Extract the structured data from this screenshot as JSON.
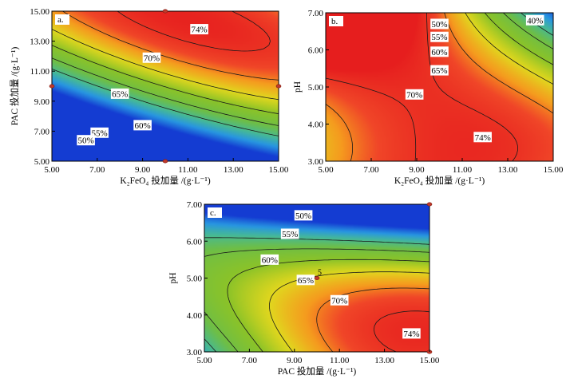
{
  "chart_data": [
    {
      "type": "heatmap",
      "panel_label": "a.",
      "xlabel": "K₂FeO₄ 投加量 /(g·L⁻¹)",
      "ylabel": "PAC 投加量 /(g·L⁻¹)",
      "xlim": [
        5,
        15
      ],
      "ylim": [
        5,
        15
      ],
      "xticks": [
        "5.00",
        "7.00",
        "9.00",
        "11.00",
        "13.00",
        "15.00"
      ],
      "yticks": [
        "5.00",
        "7.00",
        "9.00",
        "11.00",
        "13.00",
        "15.00"
      ],
      "contour_labels": [
        {
          "text": "74%",
          "x": 11.5,
          "y": 13.8
        },
        {
          "text": "70%",
          "x": 9.4,
          "y": 11.9
        },
        {
          "text": "65%",
          "x": 8.0,
          "y": 9.5
        },
        {
          "text": "60%",
          "x": 9.0,
          "y": 7.4
        },
        {
          "text": "55%",
          "x": 7.1,
          "y": 6.9
        },
        {
          "text": "50%",
          "x": 6.5,
          "y": 6.4
        }
      ],
      "design_points": [
        {
          "x": 10,
          "y": 15
        },
        {
          "x": 5,
          "y": 10
        },
        {
          "x": 15,
          "y": 10
        },
        {
          "x": 10,
          "y": 5
        }
      ]
    },
    {
      "type": "heatmap",
      "panel_label": "b.",
      "xlabel": "K₂FeO₄ 投加量 /(g·L⁻¹)",
      "ylabel": "pH",
      "xlim": [
        5,
        15
      ],
      "ylim": [
        3,
        7
      ],
      "xticks": [
        "5.00",
        "7.00",
        "9.00",
        "11.00",
        "13.00",
        "15.00"
      ],
      "yticks": [
        "3.00",
        "4.00",
        "5.00",
        "6.00",
        "7.00"
      ],
      "contour_labels": [
        {
          "text": "40%",
          "x": 14.2,
          "y": 6.8
        },
        {
          "text": "50%",
          "x": 10.0,
          "y": 6.7
        },
        {
          "text": "55%",
          "x": 10.0,
          "y": 6.35
        },
        {
          "text": "60%",
          "x": 10.0,
          "y": 5.95
        },
        {
          "text": "65%",
          "x": 10.0,
          "y": 5.45
        },
        {
          "text": "70%",
          "x": 8.9,
          "y": 4.8
        },
        {
          "text": "74%",
          "x": 11.9,
          "y": 3.65
        }
      ],
      "design_points": []
    },
    {
      "type": "heatmap",
      "panel_label": "c.",
      "xlabel": "PAC 投加量 /(g·L⁻¹)",
      "ylabel": "pH",
      "xlim": [
        5,
        15
      ],
      "ylim": [
        3,
        7
      ],
      "xticks": [
        "5.00",
        "7.00",
        "9.00",
        "11.00",
        "13.00",
        "15.00"
      ],
      "yticks": [
        "3.00",
        "4.00",
        "5.00",
        "6.00",
        "7.00"
      ],
      "contour_labels": [
        {
          "text": "50%",
          "x": 9.4,
          "y": 6.7
        },
        {
          "text": "55%",
          "x": 8.8,
          "y": 6.2
        },
        {
          "text": "60%",
          "x": 7.9,
          "y": 5.5
        },
        {
          "text": "65%",
          "x": 9.5,
          "y": 4.95
        },
        {
          "text": "70%",
          "x": 11.0,
          "y": 4.4
        },
        {
          "text": "74%",
          "x": 14.2,
          "y": 3.5
        }
      ],
      "design_points": [
        {
          "x": 10,
          "y": 5,
          "label": "5"
        },
        {
          "x": 15,
          "y": 7
        },
        {
          "x": 15,
          "y": 3
        }
      ]
    }
  ]
}
